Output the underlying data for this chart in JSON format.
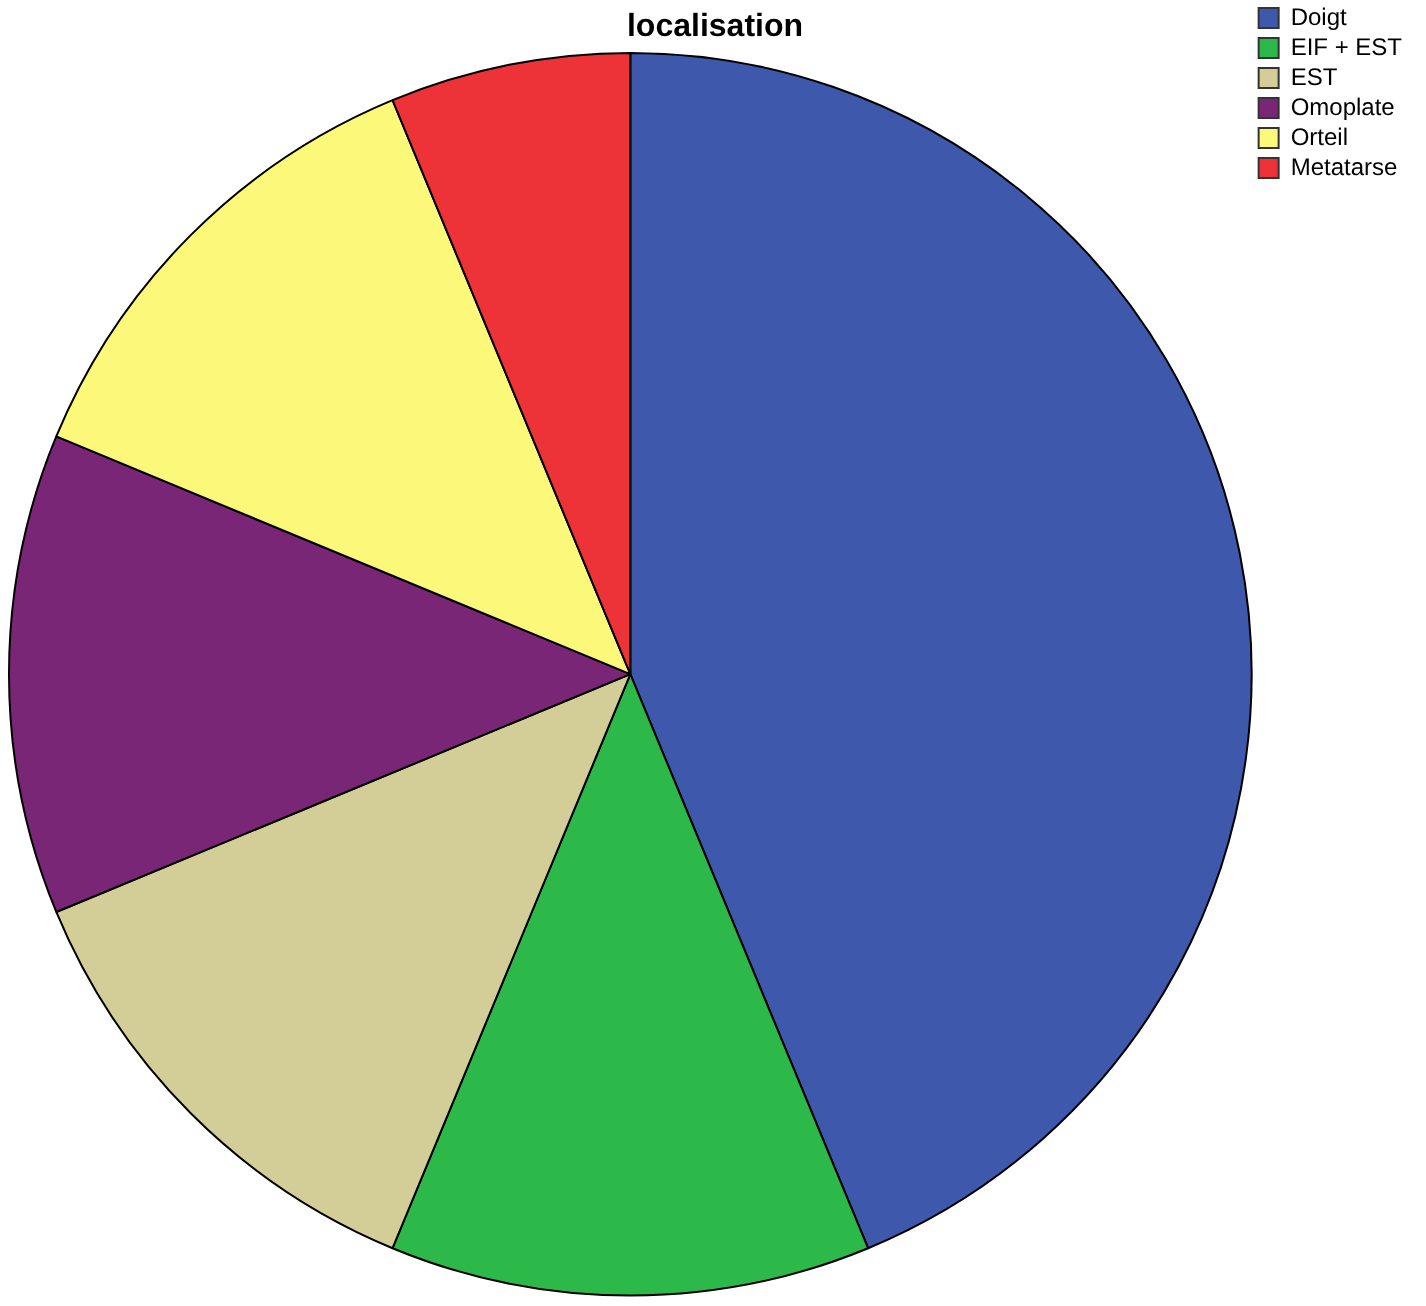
{
  "chart_data": {
    "type": "pie",
    "title": "localisation",
    "categories": [
      "Doigt",
      "EIF + EST",
      "EST",
      "Omoplate",
      "Orteil",
      "Metatarse"
    ],
    "values": [
      43.75,
      12.5,
      12.5,
      12.5,
      12.5,
      6.25
    ],
    "colors": [
      "#3e58ac",
      "#2db84a",
      "#d3ce97",
      "#792677",
      "#fbf87a",
      "#ee3338"
    ],
    "legend": "top right"
  }
}
